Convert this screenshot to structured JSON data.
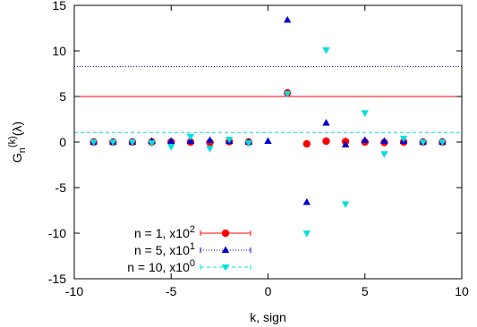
{
  "chart_data": {
    "type": "scatter",
    "xlabel": "k, sign",
    "ylabel": {
      "main": "G",
      "sub": "n",
      "sup": "(k)",
      "tail": "(λ)"
    },
    "xlim": [
      -10,
      10
    ],
    "ylim": [
      -15,
      15
    ],
    "x_ticks": [
      -10,
      -5,
      0,
      5,
      10
    ],
    "y_ticks": [
      -15,
      -10,
      -5,
      0,
      5,
      10,
      15
    ],
    "grid": false,
    "legend_position": "bottom-left",
    "series": [
      {
        "name": "n = 1, x10^2",
        "legend": {
          "text": "n = 1,  x10",
          "sup": "2"
        },
        "color": "#ff0000",
        "marker": "circle",
        "reference_line": 5.0,
        "line_style": "solid",
        "x": [
          -9,
          -8,
          -7,
          -6,
          -5,
          -4,
          -3,
          -2,
          -1,
          1,
          2,
          3,
          4,
          5,
          6,
          7,
          8,
          9
        ],
        "y": [
          0,
          0,
          0,
          0,
          0,
          0,
          -0.05,
          0.05,
          0,
          5.4,
          -0.2,
          0.1,
          0.05,
          0,
          -0.05,
          0,
          0,
          0
        ]
      },
      {
        "name": "n = 5, x10^1",
        "legend": {
          "text": "n = 5,  x10",
          "sup": "1"
        },
        "color": "#0000cc",
        "marker": "triangle-up",
        "reference_line": 8.3,
        "line_style": "dotted",
        "x": [
          -9,
          -8,
          -7,
          -6,
          -5,
          -4,
          -3,
          -2,
          -1,
          0,
          1,
          2,
          3,
          4,
          5,
          6,
          7,
          8,
          9
        ],
        "y": [
          0,
          0,
          0,
          0.1,
          0.1,
          0.1,
          0.2,
          0.1,
          0,
          0.1,
          13.4,
          -6.6,
          2.1,
          -0.3,
          0.2,
          0.1,
          0.1,
          0,
          0
        ]
      },
      {
        "name": "n = 10, x10^0",
        "legend": {
          "text": "n = 10, x10",
          "sup": "0"
        },
        "color": "#00e0e0",
        "marker": "triangle-down",
        "reference_line": 1.05,
        "line_style": "dashed",
        "x": [
          -9,
          -8,
          -7,
          -6,
          -5,
          -4,
          -3,
          -2,
          -1,
          1,
          2,
          3,
          4,
          5,
          6,
          7,
          8,
          9
        ],
        "y": [
          0,
          0,
          0,
          -0.1,
          -0.5,
          0.6,
          -0.7,
          0.3,
          -0.1,
          5.3,
          -10.0,
          10.1,
          -6.8,
          3.2,
          -1.3,
          0.4,
          0,
          0
        ]
      }
    ]
  }
}
